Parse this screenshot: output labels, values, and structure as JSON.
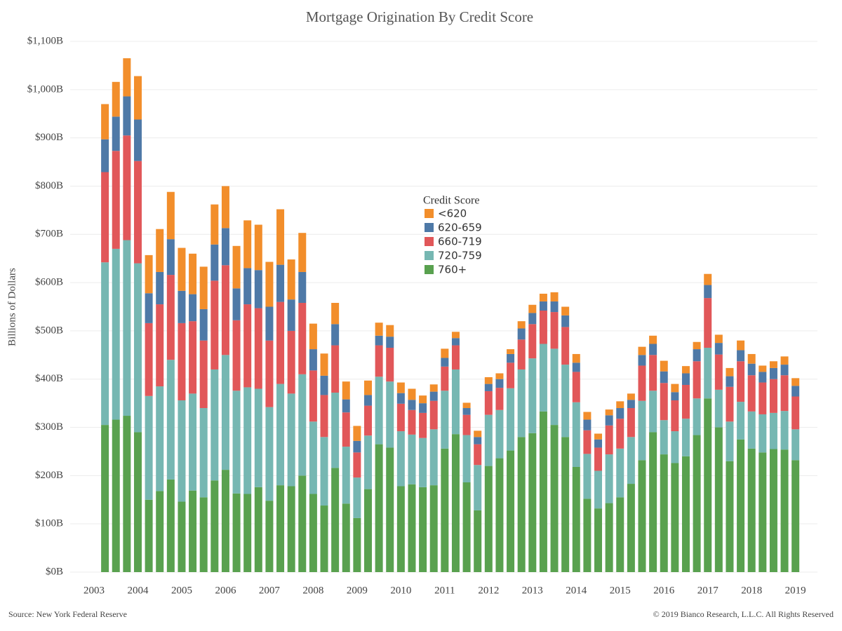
{
  "chart_data": {
    "type": "stacked_bar",
    "title": "Mortgage Origination By Credit Score",
    "y_label": "Billions of Dollars",
    "source": "Source: New York Federal Reserve",
    "copyright": "© 2019 Bianco Research, L.L.C. All Rights Reserved",
    "legend_title": "Credit Score",
    "legend": "center",
    "grid": true,
    "categories": [
      "2003",
      null,
      null,
      null,
      "2004",
      null,
      null,
      null,
      "2005",
      null,
      null,
      null,
      "2006",
      null,
      null,
      null,
      "2007",
      null,
      null,
      null,
      "2008",
      null,
      null,
      null,
      "2009",
      null,
      null,
      null,
      "2010",
      null,
      null,
      null,
      "2011",
      null,
      null,
      null,
      "2012",
      null,
      null,
      null,
      "2013",
      null,
      null,
      null,
      "2014",
      null,
      null,
      null,
      "2015",
      null,
      null,
      null,
      "2016",
      null,
      null,
      null,
      "2017",
      null,
      null,
      null,
      "2018",
      null,
      null,
      null,
      "2019"
    ],
    "ylim": [
      0,
      1100
    ],
    "yticks": [
      {
        "value": 0,
        "label": "$0B"
      },
      {
        "value": 100,
        "label": "$100B"
      },
      {
        "value": 200,
        "label": "$200B"
      },
      {
        "value": 300,
        "label": "$300B"
      },
      {
        "value": 400,
        "label": "$400B"
      },
      {
        "value": 500,
        "label": "$500B"
      },
      {
        "value": 600,
        "label": "$600B"
      },
      {
        "value": 700,
        "label": "$700B"
      },
      {
        "value": 800,
        "label": "$800B"
      },
      {
        "value": 900,
        "label": "$900B"
      },
      {
        "value": 1000,
        "label": "$1,000B"
      },
      {
        "value": 1100,
        "label": "$1,100B"
      }
    ],
    "series": [
      {
        "name": "760+",
        "color": "#59a14f",
        "values": [
          null,
          305,
          316,
          324,
          290,
          150,
          168,
          192,
          146,
          169,
          155,
          190,
          212,
          163,
          162,
          176,
          148,
          180,
          178,
          200,
          162,
          138,
          216,
          142,
          112,
          172,
          265,
          258,
          178,
          182,
          176,
          180,
          256,
          286,
          186,
          128,
          220,
          236,
          252,
          280,
          288,
          333,
          305,
          280,
          218,
          152,
          132,
          143,
          155,
          183,
          232,
          290,
          244,
          226,
          240,
          284,
          360,
          300,
          230,
          275,
          256,
          248,
          255,
          254,
          232
        ]
      },
      {
        "name": "720-759",
        "color": "#76b7b2",
        "values": [
          null,
          337,
          354,
          364,
          350,
          215,
          217,
          248,
          210,
          201,
          185,
          230,
          238,
          213,
          221,
          204,
          194,
          210,
          192,
          210,
          150,
          142,
          156,
          118,
          84,
          111,
          140,
          137,
          114,
          103,
          102,
          116,
          120,
          134,
          98,
          94,
          106,
          100,
          129,
          140,
          155,
          140,
          158,
          150,
          134,
          93,
          78,
          101,
          101,
          97,
          123,
          86,
          71,
          66,
          78,
          76,
          105,
          78,
          82,
          78,
          77,
          79,
          75,
          80,
          64
        ]
      },
      {
        "name": "660-719",
        "color": "#e15759",
        "values": [
          null,
          187,
          203,
          217,
          212,
          151,
          170,
          176,
          160,
          150,
          140,
          184,
          186,
          146,
          172,
          167,
          138,
          170,
          130,
          148,
          106,
          87,
          98,
          71,
          52,
          62,
          65,
          70,
          57,
          51,
          52,
          59,
          50,
          50,
          42,
          43,
          49,
          46,
          53,
          62,
          71,
          69,
          76,
          78,
          63,
          49,
          48,
          60,
          62,
          60,
          73,
          74,
          77,
          64,
          70,
          77,
          103,
          73,
          72,
          84,
          75,
          66,
          70,
          74,
          68
        ]
      },
      {
        "name": "620-659",
        "color": "#4e79a7",
        "values": [
          null,
          68,
          71,
          81,
          86,
          62,
          67,
          74,
          67,
          56,
          65,
          75,
          77,
          66,
          75,
          79,
          70,
          77,
          65,
          64,
          44,
          40,
          44,
          27,
          24,
          22,
          20,
          23,
          22,
          21,
          20,
          19,
          18,
          15,
          14,
          15,
          15,
          18,
          18,
          23,
          23,
          19,
          22,
          24,
          19,
          22,
          17,
          21,
          22,
          17,
          22,
          23,
          24,
          17,
          24,
          25,
          27,
          24,
          22,
          23,
          24,
          22,
          23,
          22,
          22
        ]
      },
      {
        "name": "<620",
        "color": "#f28e2b",
        "values": [
          null,
          73,
          72,
          79,
          90,
          79,
          89,
          98,
          89,
          84,
          88,
          83,
          87,
          88,
          99,
          94,
          93,
          115,
          83,
          81,
          53,
          46,
          44,
          37,
          31,
          30,
          27,
          24,
          22,
          23,
          16,
          15,
          19,
          13,
          11,
          13,
          14,
          12,
          10,
          15,
          17,
          16,
          19,
          18,
          18,
          16,
          12,
          12,
          14,
          13,
          17,
          17,
          22,
          17,
          15,
          15,
          23,
          17,
          17,
          20,
          20,
          13,
          14,
          17,
          16
        ]
      }
    ]
  }
}
